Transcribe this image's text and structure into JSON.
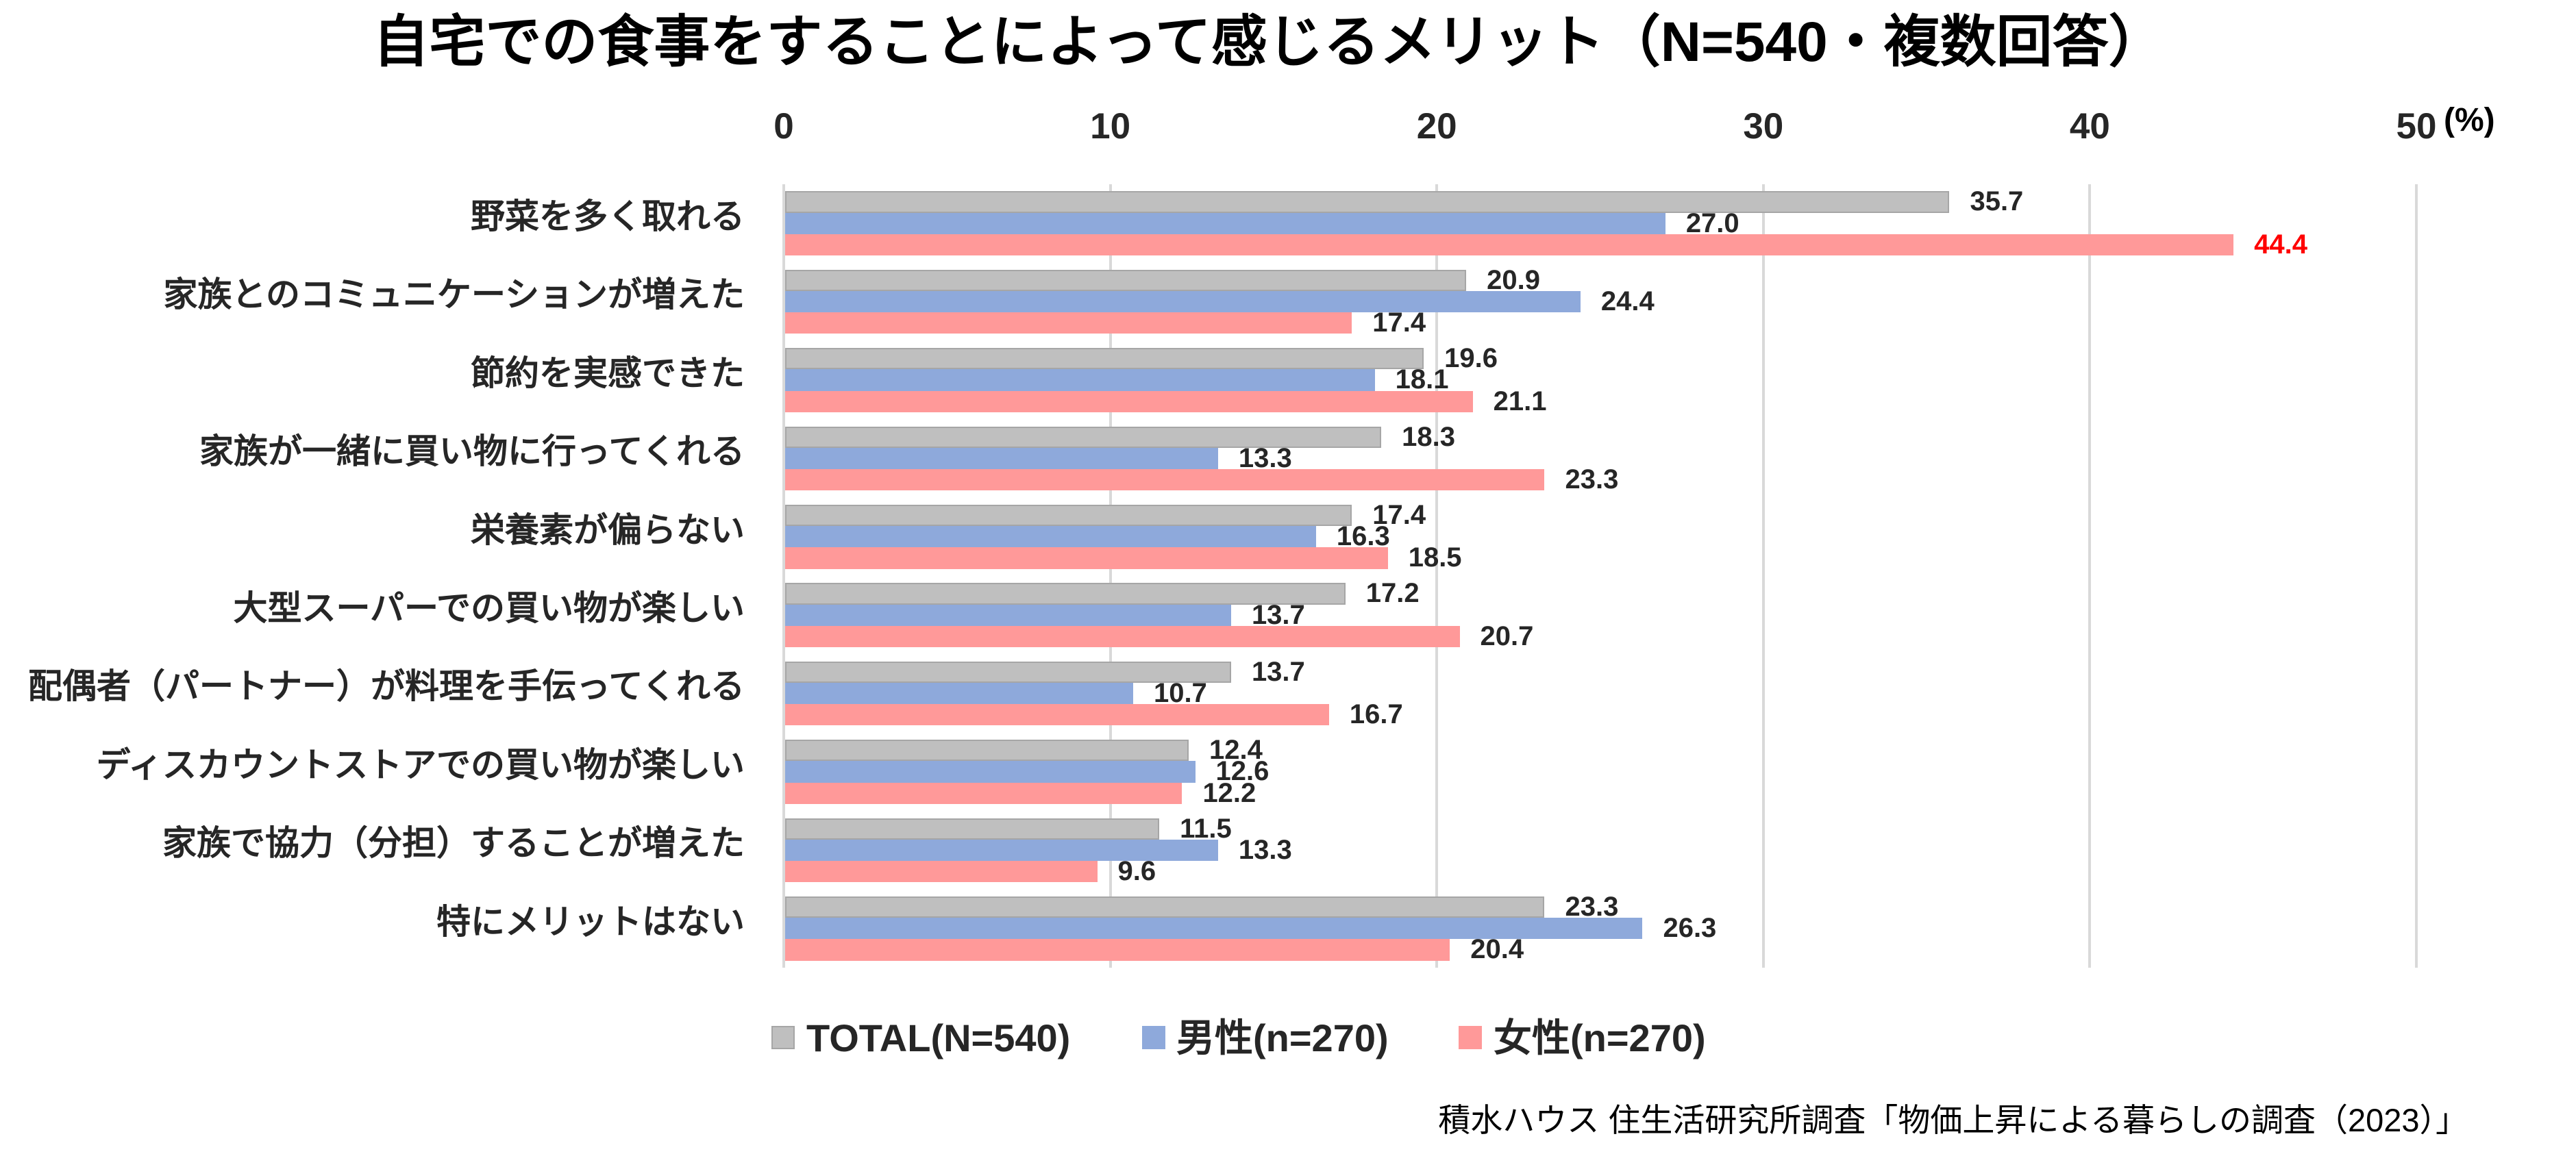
{
  "chart_data": {
    "type": "bar",
    "orientation": "horizontal",
    "title": "自宅での食事をすることによって感じるメリット（N=540・複数回答）",
    "xlabel": "",
    "ylabel": "",
    "unit_label": "(%)",
    "xlim": [
      0,
      50
    ],
    "xticks": [
      0,
      10,
      20,
      30,
      40,
      50
    ],
    "grid": true,
    "legend_position": "bottom",
    "categories": [
      "野菜を多く取れる",
      "家族とのコミュニケーションが増えた",
      "節約を実感できた",
      "家族が一緒に買い物に行ってくれる",
      "栄養素が偏らない",
      "大型スーパーでの買い物が楽しい",
      "配偶者（パートナー）が料理を手伝ってくれる",
      "ディスカウントストアでの買い物が楽しい",
      "家族で協力（分担）することが増えた",
      "特にメリットはない"
    ],
    "series": [
      {
        "name": "TOTAL(N=540)",
        "color": "#BFBFBF",
        "values": [
          35.7,
          20.9,
          19.6,
          18.3,
          17.4,
          17.2,
          13.7,
          12.4,
          11.5,
          23.3
        ],
        "labels": [
          "35.7",
          "20.9",
          "19.6",
          "18.3",
          "17.4",
          "17.2",
          "13.7",
          "12.4",
          "11.5",
          "23.3"
        ]
      },
      {
        "name": "男性(n=270)",
        "color": "#8EA9DB",
        "values": [
          27.0,
          24.4,
          18.1,
          13.3,
          16.3,
          13.7,
          10.7,
          12.6,
          13.3,
          26.3
        ],
        "labels": [
          "27.0",
          "24.4",
          "18.1",
          "13.3",
          "16.3",
          "13.7",
          "10.7",
          "12.6",
          "13.3",
          "26.3"
        ]
      },
      {
        "name": "女性(n=270)",
        "color": "#FF9999",
        "values": [
          44.4,
          17.4,
          21.1,
          23.3,
          18.5,
          20.7,
          16.7,
          12.2,
          9.6,
          20.4
        ],
        "labels": [
          "44.4",
          "17.4",
          "21.1",
          "23.3",
          "18.5",
          "20.7",
          "16.7",
          "12.2",
          "9.6",
          "20.4"
        ]
      }
    ],
    "data_label_color": "#262626",
    "highlights": [
      {
        "series": 2,
        "category": 0,
        "label_color": "#FF0000"
      }
    ]
  },
  "source_note": "積水ハウス 住生活研究所調査「物価上昇による暮らしの調査（2023）」"
}
